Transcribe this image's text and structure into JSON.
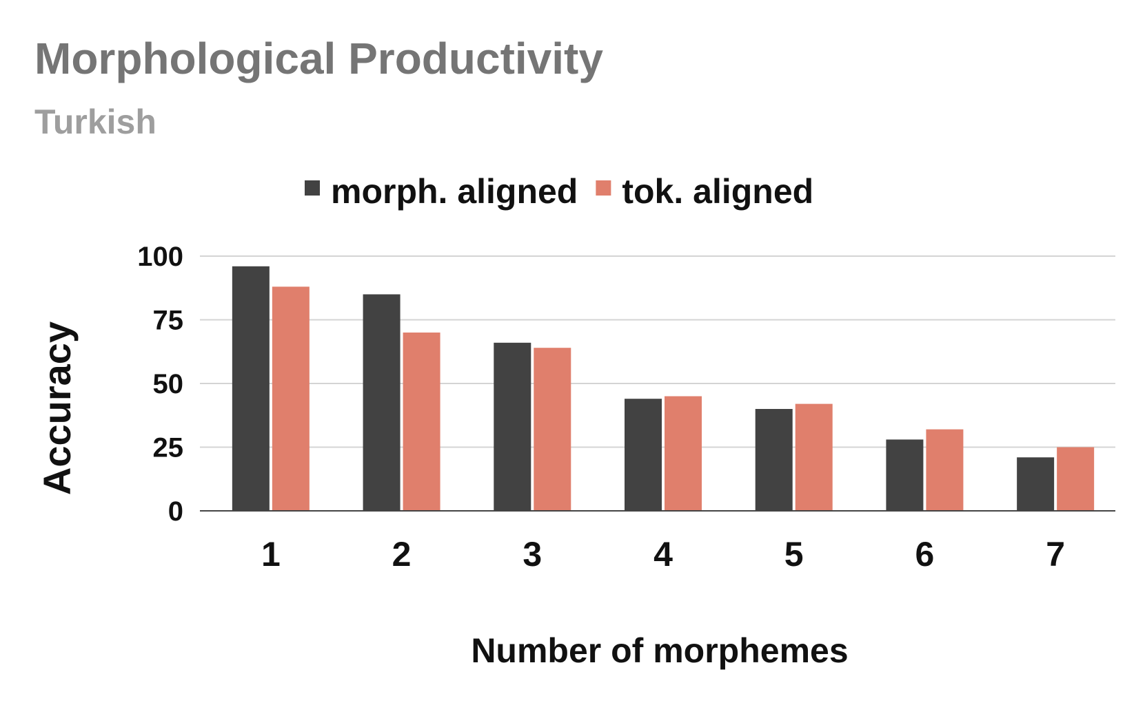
{
  "chart_data": {
    "type": "bar",
    "title": "Morphological Productivity",
    "subtitle": "Turkish",
    "xlabel": "Number of morphemes",
    "ylabel": "Accuracy",
    "categories": [
      "1",
      "2",
      "3",
      "4",
      "5",
      "6",
      "7"
    ],
    "series": [
      {
        "name": "morph. aligned",
        "color": "#424242",
        "values": [
          96,
          85,
          66,
          44,
          40,
          28,
          21
        ]
      },
      {
        "name": "tok. aligned",
        "color": "#e07f6c",
        "values": [
          88,
          70,
          64,
          45,
          42,
          32,
          25
        ]
      }
    ],
    "ylim": [
      0,
      100
    ],
    "yticks": [
      "0",
      "25",
      "50",
      "75",
      "100"
    ],
    "grid": true,
    "legend_position": "top-center"
  }
}
